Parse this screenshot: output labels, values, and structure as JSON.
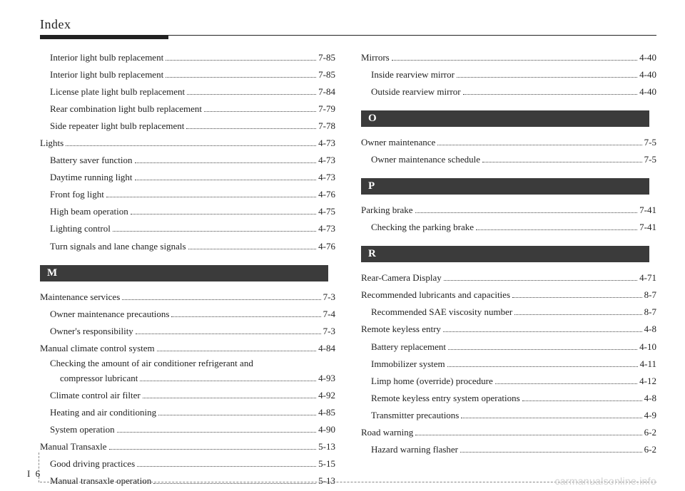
{
  "header": {
    "title": "Index"
  },
  "left": {
    "entries": [
      {
        "label": "Interior light bulb replacement",
        "page": "7-85",
        "indent": "sub"
      },
      {
        "label": "Interior light bulb replacement",
        "page": "7-85",
        "indent": "sub"
      },
      {
        "label": "License plate light bulb replacement",
        "page": "7-84",
        "indent": "sub"
      },
      {
        "label": "Rear combination light bulb replacement",
        "page": "7-79",
        "indent": "sub"
      },
      {
        "label": "Side repeater light bulb replacement",
        "page": "7-78",
        "indent": "sub"
      },
      {
        "label": "Lights",
        "page": "4-73",
        "indent": ""
      },
      {
        "label": "Battery saver function",
        "page": "4-73",
        "indent": "sub"
      },
      {
        "label": "Daytime running light",
        "page": "4-73",
        "indent": "sub"
      },
      {
        "label": "Front fog light",
        "page": "4-76",
        "indent": "sub"
      },
      {
        "label": "High beam operation",
        "page": "4-75",
        "indent": "sub"
      },
      {
        "label": "Lighting control",
        "page": "4-73",
        "indent": "sub"
      },
      {
        "label": "Turn signals and lane change signals",
        "page": "4-76",
        "indent": "sub"
      }
    ],
    "section_M": {
      "letter": "M",
      "entries": [
        {
          "label": "Maintenance services",
          "page": "7-3",
          "indent": ""
        },
        {
          "label": "Owner maintenance precautions",
          "page": "7-4",
          "indent": "sub"
        },
        {
          "label": "Owner's responsibility",
          "page": "7-3",
          "indent": "sub"
        },
        {
          "label": "Manual climate control system",
          "page": "4-84",
          "indent": ""
        }
      ],
      "multiline": {
        "line1": "Checking the amount of air conditioner refrigerant and",
        "line2": "compressor lubricant",
        "page": "4-93"
      },
      "entries2": [
        {
          "label": "Climate control air filter",
          "page": "4-92",
          "indent": "sub"
        },
        {
          "label": "Heating and air conditioning",
          "page": "4-85",
          "indent": "sub"
        },
        {
          "label": "System operation",
          "page": "4-90",
          "indent": "sub"
        },
        {
          "label": "Manual Transaxle",
          "page": "5-13",
          "indent": ""
        },
        {
          "label": "Good driving practices",
          "page": "5-15",
          "indent": "sub"
        },
        {
          "label": "Manual transaxle operation",
          "page": "5-13",
          "indent": "sub"
        }
      ]
    }
  },
  "right": {
    "entriesTop": [
      {
        "label": "Mirrors",
        "page": "4-40",
        "indent": ""
      },
      {
        "label": "Inside rearview mirror",
        "page": "4-40",
        "indent": "sub"
      },
      {
        "label": "Outside rearview mirror",
        "page": "4-40",
        "indent": "sub"
      }
    ],
    "section_O": {
      "letter": "O",
      "entries": [
        {
          "label": "Owner maintenance",
          "page": "7-5",
          "indent": ""
        },
        {
          "label": "Owner maintenance schedule",
          "page": "7-5",
          "indent": "sub"
        }
      ]
    },
    "section_P": {
      "letter": "P",
      "entries": [
        {
          "label": "Parking brake",
          "page": "7-41",
          "indent": ""
        },
        {
          "label": "Checking the parking brake",
          "page": "7-41",
          "indent": "sub"
        }
      ]
    },
    "section_R": {
      "letter": "R",
      "entries": [
        {
          "label": "Rear-Camera Display",
          "page": "4-71",
          "indent": ""
        },
        {
          "label": "Recommended lubricants and capacities",
          "page": "8-7",
          "indent": ""
        },
        {
          "label": "Recommended SAE viscosity number",
          "page": "8-7",
          "indent": "sub"
        },
        {
          "label": "Remote keyless entry",
          "page": "4-8",
          "indent": ""
        },
        {
          "label": "Battery replacement",
          "page": "4-10",
          "indent": "sub"
        },
        {
          "label": "Immobilizer system",
          "page": "4-11",
          "indent": "sub"
        },
        {
          "label": "Limp home (override) procedure",
          "page": "4-12",
          "indent": "sub"
        },
        {
          "label": "Remote keyless entry system operations",
          "page": "4-8",
          "indent": "sub"
        },
        {
          "label": "Transmitter precautions",
          "page": "4-9",
          "indent": "sub"
        },
        {
          "label": "Road warning",
          "page": "6-2",
          "indent": ""
        },
        {
          "label": "Hazard warning flasher",
          "page": "6-2",
          "indent": "sub"
        }
      ]
    }
  },
  "footer": {
    "pagenum": "I 6"
  },
  "watermark": "carmanualsonline.info"
}
